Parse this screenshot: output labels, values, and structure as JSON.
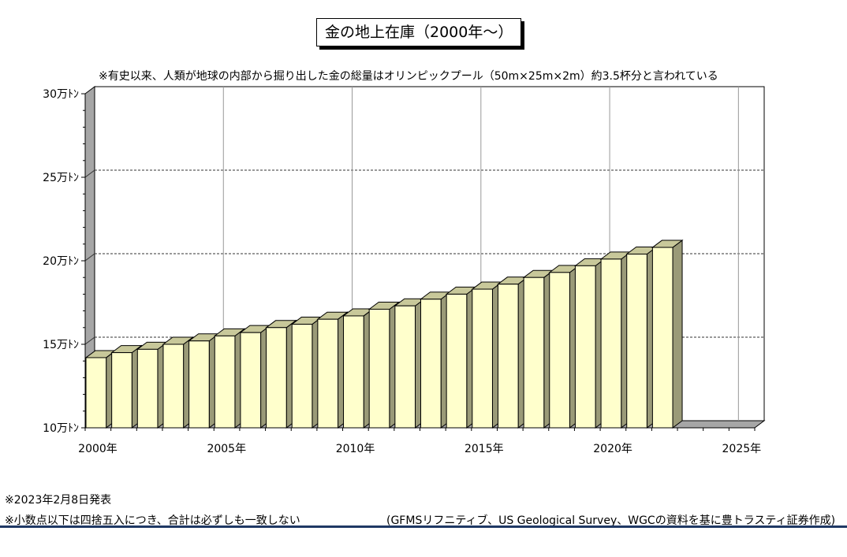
{
  "title": "金の地上在庫（2000年～）",
  "note": "※有史以来、人類が地球の内部から掘り出した金の総量はオリンピックプール（50m×25m×2m）約3.5杯分と言われている",
  "footer": {
    "release": "※2023年2月8日発表",
    "rounding": "※小数点以下は四捨五入につき、合計は必ずしも一致しない",
    "source": "(GFMSリフニティブ、US Geological Survey、WGCの資料を基に豊トラスティ証券作成)"
  },
  "colors": {
    "bar_face": "#ffffcc",
    "bar_top": "#c8c89a",
    "bar_side": "#9a9a78",
    "wall": "#a6a6a6",
    "grid": "#333333",
    "vgrid": "#999999",
    "footer_rule": "#1f3864"
  },
  "chart_data": {
    "type": "bar",
    "title": "金の地上在庫（2000年～）",
    "unit": "万トン",
    "ylim": [
      10,
      30
    ],
    "yticks": [
      {
        "value": 10,
        "label": "10万ﾄﾝ"
      },
      {
        "value": 15,
        "label": "15万ﾄﾝ"
      },
      {
        "value": 20,
        "label": "20万ﾄﾝ"
      },
      {
        "value": 25,
        "label": "25万ﾄﾝ"
      },
      {
        "value": 30,
        "label": "30万ﾄﾝ"
      }
    ],
    "xlim": [
      2000,
      2026
    ],
    "xticks": [
      {
        "value": 2000,
        "label": "2000年"
      },
      {
        "value": 2005,
        "label": "2005年"
      },
      {
        "value": 2010,
        "label": "2010年"
      },
      {
        "value": 2015,
        "label": "2015年"
      },
      {
        "value": 2020,
        "label": "2020年"
      },
      {
        "value": 2025,
        "label": "2025年"
      }
    ],
    "categories": [
      2000,
      2001,
      2002,
      2003,
      2004,
      2005,
      2006,
      2007,
      2008,
      2009,
      2010,
      2011,
      2012,
      2013,
      2014,
      2015,
      2016,
      2017,
      2018,
      2019,
      2020,
      2021,
      2022
    ],
    "values": [
      14.2,
      14.5,
      14.7,
      15.0,
      15.2,
      15.5,
      15.7,
      16.0,
      16.2,
      16.5,
      16.7,
      17.1,
      17.3,
      17.7,
      18.0,
      18.3,
      18.6,
      19.0,
      19.3,
      19.7,
      20.1,
      20.4,
      20.8
    ],
    "grid": "dashed horizontal at 15, 20, 25; solid vertical every 5 years"
  }
}
